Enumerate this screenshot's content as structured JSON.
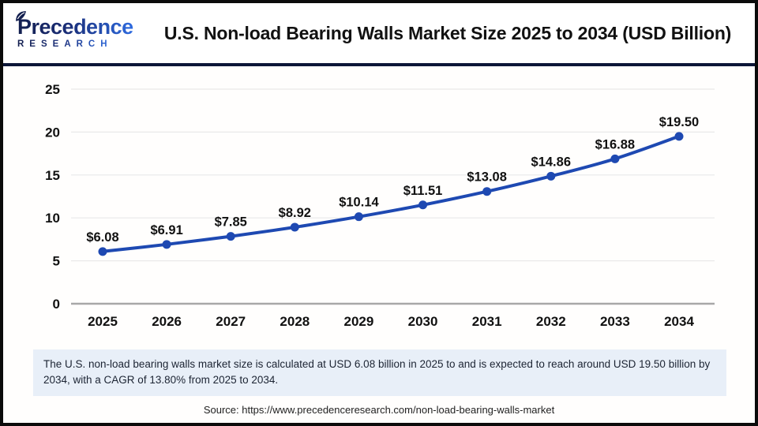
{
  "header": {
    "logo": {
      "brand": "Precedence",
      "sub": "RESEARCH",
      "navy": "#131f4f",
      "blue": "#2e6be0"
    },
    "title": "U.S. Non-load Bearing Walls Market Size 2025 to 2034 (USD Billion)"
  },
  "chart_data": {
    "type": "line",
    "title": "U.S. Non-load Bearing Walls Market Size 2025 to 2034 (USD Billion)",
    "categories": [
      "2025",
      "2026",
      "2027",
      "2028",
      "2029",
      "2030",
      "2031",
      "2032",
      "2033",
      "2034"
    ],
    "values": [
      6.08,
      6.91,
      7.85,
      8.92,
      10.14,
      11.51,
      13.08,
      14.86,
      16.88,
      19.5
    ],
    "point_labels": [
      "$6.08",
      "$6.91",
      "$7.85",
      "$8.92",
      "$10.14",
      "$11.51",
      "$13.08",
      "$14.86",
      "$16.88",
      "$19.50"
    ],
    "xlabel": "",
    "ylabel": "",
    "ylim": [
      0,
      25
    ],
    "yticks": [
      0,
      5,
      10,
      15,
      20,
      25
    ],
    "grid": true,
    "legend_position": "none",
    "line_color": "#1e49b2",
    "marker_color": "#1e49b2",
    "gridline_color": "#e9e9e9",
    "axis_line_color": "#a8a8a8",
    "label_color": "#111111"
  },
  "footer": {
    "summary": "The U.S. non-load bearing walls market size is calculated at USD 6.08 billion in 2025 to and is expected to reach around USD 19.50 billion by 2034, with a CAGR of 13.80% from 2025 to 2034.",
    "source": "Source: https://www.precedenceresearch.com/non-load-bearing-walls-market"
  }
}
